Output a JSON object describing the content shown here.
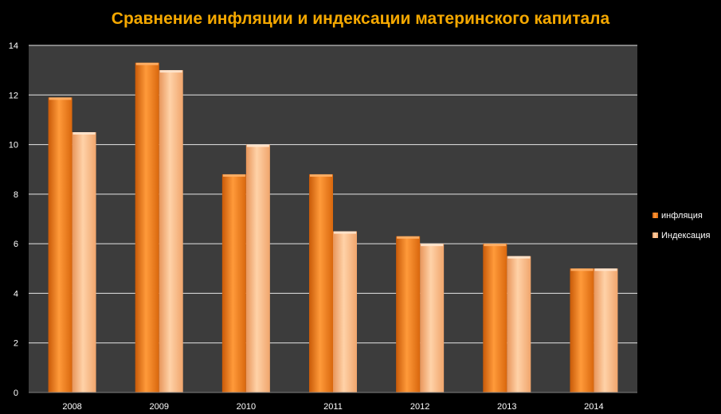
{
  "chart_data": {
    "type": "bar",
    "title": "Сравнение инфляции и индексации материнского капитала",
    "categories": [
      "2008",
      "2009",
      "2010",
      "2011",
      "2012",
      "2013",
      "2014"
    ],
    "series": [
      {
        "name": "инфляция",
        "values": [
          11.9,
          13.3,
          8.8,
          8.8,
          6.3,
          6.0,
          5.0
        ],
        "color": "#f07d1a"
      },
      {
        "name": "Индексация",
        "values": [
          10.5,
          13.0,
          10.0,
          6.5,
          6.0,
          5.5,
          5.0
        ],
        "color": "#f9b27a"
      }
    ],
    "ylim": [
      0,
      14
    ],
    "yticks": [
      0,
      2,
      4,
      6,
      8,
      10,
      12,
      14
    ],
    "grid": true,
    "legend": "right",
    "plot_background": "#3c3c3c",
    "page_background": "#000000",
    "title_color": "#f5a800"
  }
}
